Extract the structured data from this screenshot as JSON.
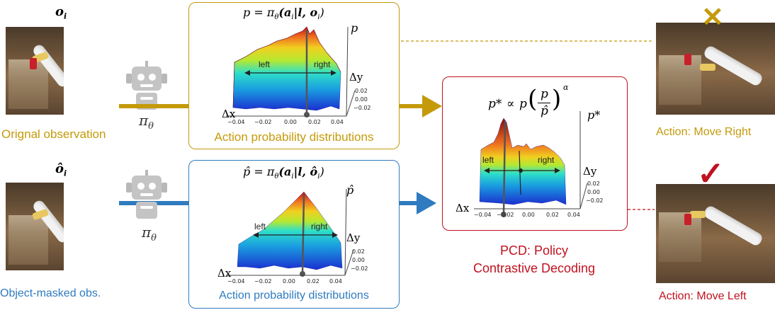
{
  "top_row": {
    "obs_symbol": "o",
    "obs_subscript": "i",
    "obs_caption": "Orignal observation",
    "policy_symbol": "π",
    "policy_subscript": "θ",
    "panel_formula": "p = π",
    "panel_formula_sub": "θ",
    "panel_formula_args": "(a",
    "panel_formula_args_sub": "i",
    "panel_formula_tail": "|l, o",
    "panel_formula_tail_sub": "i",
    "panel_formula_close": ")",
    "panel_caption": "Action probability distributions",
    "axis_p": "p",
    "axis_dy": "Δy",
    "axis_dx": "Δx",
    "left_label": "left",
    "right_label": "right",
    "x_ticks": [
      "−0.04",
      "−0.02",
      "0.00",
      "0.02",
      "0.04"
    ],
    "y_ticks": [
      "0.02",
      "0.00",
      "−0.02"
    ],
    "result_caption": "Action: Move Right",
    "result_mark": "✕"
  },
  "bottom_row": {
    "obs_symbol": "ô",
    "obs_subscript": "i",
    "obs_caption": "Object-masked obs.",
    "policy_symbol": "π",
    "policy_subscript": "θ",
    "panel_formula": "p̂ = π",
    "panel_formula_sub": "θ",
    "panel_formula_args": "(a",
    "panel_formula_args_sub": "i",
    "panel_formula_tail": "|l, ô",
    "panel_formula_tail_sub": "i",
    "panel_formula_close": ")",
    "panel_caption": "Action probability distributions",
    "axis_p": "p̂",
    "axis_dy": "Δy",
    "axis_dx": "Δx",
    "left_label": "left",
    "right_label": "right",
    "x_ticks": [
      "−0.04",
      "−0.02",
      "0.00",
      "0.02",
      "0.04"
    ],
    "y_ticks": [
      "0.02",
      "0.00",
      "−0.02"
    ],
    "result_caption": "Action: Move Left",
    "result_mark": "✓"
  },
  "pcd": {
    "formula_lhs": "p*",
    "formula_prop": "∝",
    "formula_p": "p",
    "formula_num": "p",
    "formula_den": "p̂",
    "formula_exp": "α",
    "axis_p": "p*",
    "axis_dy": "Δy",
    "axis_dx": "Δx",
    "left_label": "left",
    "right_label": "right",
    "x_ticks": [
      "−0.04",
      "−0.02",
      "0.00",
      "0.02",
      "0.04"
    ],
    "y_ticks": [
      "0.02",
      "0.00",
      "−0.02"
    ],
    "caption_line1": "PCD: Policy",
    "caption_line2": "Contrastive Decoding"
  },
  "colors": {
    "gold": "#c49a0a",
    "blue": "#2f7bbf",
    "red": "#c0121f"
  }
}
